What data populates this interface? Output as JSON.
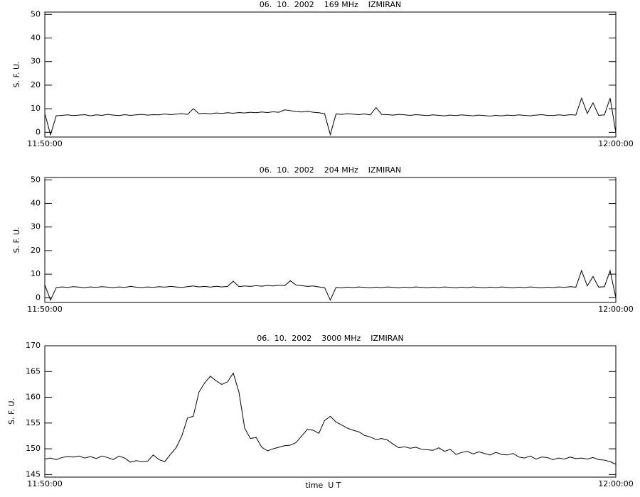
{
  "chart_data": [
    {
      "type": "line",
      "title": "06.  10.  2002    169 MHz    IZMIRAN",
      "ylabel": "S. F. U.",
      "x": [
        "11:50:00",
        "11:50:06",
        "11:50:12",
        "11:50:18",
        "11:50:24",
        "11:50:30",
        "11:50:36",
        "11:50:42",
        "11:50:48",
        "11:50:54",
        "11:51:00",
        "11:51:06",
        "11:51:12",
        "11:51:18",
        "11:51:24",
        "11:51:30",
        "11:51:36",
        "11:51:42",
        "11:51:48",
        "11:51:54",
        "11:52:00",
        "11:52:06",
        "11:52:12",
        "11:52:18",
        "11:52:24",
        "11:52:30",
        "11:52:36",
        "11:52:42",
        "11:52:48",
        "11:52:54",
        "11:53:00",
        "11:53:06",
        "11:53:12",
        "11:53:18",
        "11:53:24",
        "11:53:30",
        "11:53:36",
        "11:53:42",
        "11:53:48",
        "11:53:54",
        "11:54:00",
        "11:54:06",
        "11:54:12",
        "11:54:18",
        "11:54:24",
        "11:54:30",
        "11:54:36",
        "11:54:42",
        "11:54:48",
        "11:54:54",
        "11:55:00",
        "11:55:06",
        "11:55:12",
        "11:55:18",
        "11:55:24",
        "11:55:30",
        "11:55:36",
        "11:55:42",
        "11:55:48",
        "11:55:54",
        "11:56:00",
        "11:56:06",
        "11:56:12",
        "11:56:18",
        "11:56:24",
        "11:56:30",
        "11:56:36",
        "11:56:42",
        "11:56:48",
        "11:56:54",
        "11:57:00",
        "11:57:06",
        "11:57:12",
        "11:57:18",
        "11:57:24",
        "11:57:30",
        "11:57:36",
        "11:57:42",
        "11:57:48",
        "11:57:54",
        "11:58:00",
        "11:58:06",
        "11:58:12",
        "11:58:18",
        "11:58:24",
        "11:58:30",
        "11:58:36",
        "11:58:42",
        "11:58:48",
        "11:58:54",
        "11:59:00",
        "11:59:06",
        "11:59:12",
        "11:59:18",
        "11:59:24",
        "11:59:30",
        "11:59:36",
        "11:59:42",
        "11:59:48",
        "11:59:54",
        "12:00:00"
      ],
      "values": [
        8,
        -1,
        7,
        7.2,
        7.4,
        7.1,
        7.3,
        7.5,
        7,
        7.4,
        7.2,
        7.6,
        7.3,
        7.1,
        7.5,
        7.2,
        7.4,
        7.6,
        7.3,
        7.5,
        7.4,
        7.8,
        7.5,
        7.7,
        7.9,
        7.6,
        10,
        7.9,
        8.1,
        7.8,
        8.2,
        8,
        8.3,
        8.1,
        8.4,
        8.2,
        8.5,
        8.3,
        8.6,
        8.4,
        8.7,
        8.5,
        9.5,
        9.2,
        8.8,
        8.6,
        8.9,
        8.5,
        8.3,
        7.9,
        -1,
        7.8,
        7.6,
        7.9,
        7.7,
        7.5,
        7.8,
        7.4,
        10.5,
        7.6,
        7.5,
        7.3,
        7.6,
        7.4,
        7.2,
        7.5,
        7.3,
        7.1,
        7.4,
        7.2,
        7,
        7.3,
        7.1,
        7.4,
        7.2,
        7,
        7.3,
        7.1,
        6.9,
        7.2,
        7,
        7.3,
        7.1,
        7.4,
        7.2,
        7,
        7.3,
        7.5,
        7.2,
        7.1,
        7.4,
        7.2,
        7.5,
        7.3,
        14.5,
        8,
        12.5,
        7.2,
        7.4,
        14.5,
        0
      ],
      "color": "#000000",
      "xlim": [
        "11:50:00",
        "12:00:00"
      ],
      "xticks": [
        "11:50:00",
        "12:00:00"
      ],
      "ylim": [
        -2,
        51
      ],
      "yticks": [
        0,
        10,
        20,
        30,
        40,
        50
      ]
    },
    {
      "type": "line",
      "title": "06.  10.  2002    204 MHz    IZMIRAN",
      "ylabel": "S. F. U.",
      "x": [
        "11:50:00",
        "11:50:06",
        "11:50:12",
        "11:50:18",
        "11:50:24",
        "11:50:30",
        "11:50:36",
        "11:50:42",
        "11:50:48",
        "11:50:54",
        "11:51:00",
        "11:51:06",
        "11:51:12",
        "11:51:18",
        "11:51:24",
        "11:51:30",
        "11:51:36",
        "11:51:42",
        "11:51:48",
        "11:51:54",
        "11:52:00",
        "11:52:06",
        "11:52:12",
        "11:52:18",
        "11:52:24",
        "11:52:30",
        "11:52:36",
        "11:52:42",
        "11:52:48",
        "11:52:54",
        "11:53:00",
        "11:53:06",
        "11:53:12",
        "11:53:18",
        "11:53:24",
        "11:53:30",
        "11:53:36",
        "11:53:42",
        "11:53:48",
        "11:53:54",
        "11:54:00",
        "11:54:06",
        "11:54:12",
        "11:54:18",
        "11:54:24",
        "11:54:30",
        "11:54:36",
        "11:54:42",
        "11:54:48",
        "11:54:54",
        "11:55:00",
        "11:55:06",
        "11:55:12",
        "11:55:18",
        "11:55:24",
        "11:55:30",
        "11:55:36",
        "11:55:42",
        "11:55:48",
        "11:55:54",
        "11:56:00",
        "11:56:06",
        "11:56:12",
        "11:56:18",
        "11:56:24",
        "11:56:30",
        "11:56:36",
        "11:56:42",
        "11:56:48",
        "11:56:54",
        "11:57:00",
        "11:57:06",
        "11:57:12",
        "11:57:18",
        "11:57:24",
        "11:57:30",
        "11:57:36",
        "11:57:42",
        "11:57:48",
        "11:57:54",
        "11:58:00",
        "11:58:06",
        "11:58:12",
        "11:58:18",
        "11:58:24",
        "11:58:30",
        "11:58:36",
        "11:58:42",
        "11:58:48",
        "11:58:54",
        "11:59:00",
        "11:59:06",
        "11:59:12",
        "11:59:18",
        "11:59:24",
        "11:59:30",
        "11:59:36",
        "11:59:42",
        "11:59:48",
        "11:59:54",
        "12:00:00"
      ],
      "values": [
        5.5,
        -1,
        4.3,
        4.6,
        4.4,
        4.7,
        4.5,
        4.3,
        4.6,
        4.4,
        4.7,
        4.5,
        4.3,
        4.6,
        4.4,
        4.8,
        4.5,
        4.3,
        4.6,
        4.4,
        4.7,
        4.5,
        4.8,
        4.6,
        4.4,
        4.7,
        5,
        4.6,
        4.8,
        4.5,
        4.9,
        4.6,
        4.8,
        7,
        4.7,
        5,
        4.8,
        5.1,
        4.9,
        5.2,
        5,
        5.3,
        5.1,
        7.2,
        5.4,
        5.1,
        4.8,
        5,
        4.6,
        4.3,
        -1,
        4.4,
        4.2,
        4.5,
        4.3,
        4.6,
        4.4,
        4.2,
        4.5,
        4.3,
        4.6,
        4.4,
        4.2,
        4.5,
        4.3,
        4.6,
        4.4,
        4.2,
        4.5,
        4.3,
        4.6,
        4.4,
        4.2,
        4.5,
        4.3,
        4.6,
        4.4,
        4.2,
        4.5,
        4.3,
        4.6,
        4.4,
        4.2,
        4.5,
        4.3,
        4.6,
        4.4,
        4.2,
        4.5,
        4.3,
        4.6,
        4.4,
        4.7,
        4.5,
        11.5,
        5,
        9,
        4.5,
        4.7,
        11.5,
        0
      ],
      "color": "#000000",
      "xlim": [
        "11:50:00",
        "12:00:00"
      ],
      "xticks": [
        "11:50:00",
        "12:00:00"
      ],
      "ylim": [
        -2,
        51
      ],
      "yticks": [
        0,
        10,
        20,
        30,
        40,
        50
      ]
    },
    {
      "type": "line",
      "title": "06.  10.  2002    3000 MHz    IZMIRAN",
      "ylabel": "S. F. U.",
      "xlabel": "time  U T",
      "x": [
        "11:50:00",
        "11:50:06",
        "11:50:12",
        "11:50:18",
        "11:50:24",
        "11:50:30",
        "11:50:36",
        "11:50:42",
        "11:50:48",
        "11:50:54",
        "11:51:00",
        "11:51:06",
        "11:51:12",
        "11:51:18",
        "11:51:24",
        "11:51:30",
        "11:51:36",
        "11:51:42",
        "11:51:48",
        "11:51:54",
        "11:52:00",
        "11:52:06",
        "11:52:12",
        "11:52:18",
        "11:52:24",
        "11:52:30",
        "11:52:36",
        "11:52:42",
        "11:52:48",
        "11:52:54",
        "11:53:00",
        "11:53:06",
        "11:53:12",
        "11:53:18",
        "11:53:24",
        "11:53:30",
        "11:53:36",
        "11:53:42",
        "11:53:48",
        "11:53:54",
        "11:54:00",
        "11:54:06",
        "11:54:12",
        "11:54:18",
        "11:54:24",
        "11:54:30",
        "11:54:36",
        "11:54:42",
        "11:54:48",
        "11:54:54",
        "11:55:00",
        "11:55:06",
        "11:55:12",
        "11:55:18",
        "11:55:24",
        "11:55:30",
        "11:55:36",
        "11:55:42",
        "11:55:48",
        "11:55:54",
        "11:56:00",
        "11:56:06",
        "11:56:12",
        "11:56:18",
        "11:56:24",
        "11:56:30",
        "11:56:36",
        "11:56:42",
        "11:56:48",
        "11:56:54",
        "11:57:00",
        "11:57:06",
        "11:57:12",
        "11:57:18",
        "11:57:24",
        "11:57:30",
        "11:57:36",
        "11:57:42",
        "11:57:48",
        "11:57:54",
        "11:58:00",
        "11:58:06",
        "11:58:12",
        "11:58:18",
        "11:58:24",
        "11:58:30",
        "11:58:36",
        "11:58:42",
        "11:58:48",
        "11:58:54",
        "11:59:00",
        "11:59:06",
        "11:59:12",
        "11:59:18",
        "11:59:24",
        "11:59:30",
        "11:59:36",
        "11:59:42",
        "11:59:48",
        "11:59:54",
        "12:00:00"
      ],
      "values": [
        148,
        148.2,
        147.9,
        148.3,
        148.5,
        148.4,
        148.6,
        148.2,
        148.5,
        148.1,
        148.6,
        148.3,
        147.9,
        148.6,
        148.2,
        147.4,
        147.7,
        147.5,
        147.6,
        148.8,
        147.9,
        147.5,
        148.9,
        150.2,
        152.5,
        156,
        156.3,
        161,
        162.8,
        164.1,
        163.2,
        162.5,
        163,
        164.7,
        161,
        154,
        152,
        152.2,
        150.3,
        149.6,
        150,
        150.3,
        150.6,
        150.7,
        151.2,
        152.5,
        153.8,
        153.6,
        153,
        155.5,
        156.3,
        155.2,
        154.6,
        154,
        153.6,
        153.3,
        152.6,
        152.3,
        151.8,
        152,
        151.7,
        150.9,
        150.2,
        150.4,
        150.1,
        150.3,
        149.9,
        149.8,
        149.7,
        150.2,
        149.5,
        149.9,
        148.9,
        149.3,
        149.5,
        149,
        149.4,
        149.1,
        148.8,
        149.3,
        148.9,
        148.8,
        149.1,
        148.4,
        148.2,
        148.6,
        148,
        148.4,
        148.3,
        147.9,
        148.2,
        148,
        148.4,
        148.1,
        148.2,
        148,
        148.3,
        147.9,
        147.8,
        147.5,
        147
      ],
      "color": "#000000",
      "xlim": [
        "11:50:00",
        "12:00:00"
      ],
      "xticks": [
        "11:50:00",
        "12:00:00"
      ],
      "ylim": [
        144.5,
        170
      ],
      "yticks": [
        145,
        150,
        155,
        160,
        165,
        170
      ]
    }
  ]
}
